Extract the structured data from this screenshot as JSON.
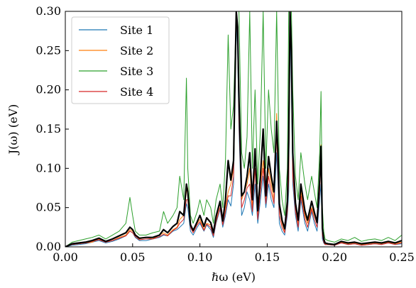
{
  "chart_data": {
    "type": "line",
    "xlabel": "ℏω (eV)",
    "ylabel": "J(ω) (eV)",
    "xlim": [
      0.0,
      0.25
    ],
    "ylim": [
      0.0,
      0.3
    ],
    "x_ticks": [
      0.0,
      0.05,
      0.1,
      0.15,
      0.2,
      0.25
    ],
    "x_tick_labels": [
      "0.00",
      "0.05",
      "0.10",
      "0.15",
      "0.20",
      "0.25"
    ],
    "y_ticks": [
      0.0,
      0.05,
      0.1,
      0.15,
      0.2,
      0.25,
      0.3
    ],
    "y_tick_labels": [
      "0.00",
      "0.05",
      "0.10",
      "0.15",
      "0.20",
      "0.25",
      "0.30"
    ],
    "legend_position": "upper-left",
    "grid": false,
    "x": [
      0.0,
      0.005,
      0.01,
      0.015,
      0.02,
      0.025,
      0.03,
      0.035,
      0.04,
      0.045,
      0.048,
      0.05,
      0.052,
      0.055,
      0.06,
      0.065,
      0.07,
      0.073,
      0.076,
      0.08,
      0.083,
      0.085,
      0.088,
      0.09,
      0.091,
      0.093,
      0.095,
      0.098,
      0.1,
      0.103,
      0.105,
      0.108,
      0.11,
      0.112,
      0.115,
      0.117,
      0.119,
      0.121,
      0.123,
      0.125,
      0.127,
      0.128,
      0.129,
      0.131,
      0.133,
      0.135,
      0.137,
      0.139,
      0.141,
      0.143,
      0.145,
      0.147,
      0.149,
      0.151,
      0.153,
      0.155,
      0.157,
      0.158,
      0.159,
      0.161,
      0.163,
      0.165,
      0.166,
      0.167,
      0.168,
      0.169,
      0.171,
      0.173,
      0.175,
      0.178,
      0.18,
      0.183,
      0.185,
      0.187,
      0.189,
      0.19,
      0.191,
      0.192,
      0.193,
      0.195,
      0.2,
      0.205,
      0.21,
      0.215,
      0.22,
      0.225,
      0.23,
      0.235,
      0.24,
      0.245,
      0.25
    ],
    "series": [
      {
        "name": "Site 1",
        "color": "#1f77b4",
        "values": [
          0.0,
          0.002,
          0.003,
          0.004,
          0.006,
          0.008,
          0.005,
          0.007,
          0.01,
          0.014,
          0.02,
          0.018,
          0.012,
          0.008,
          0.008,
          0.01,
          0.012,
          0.015,
          0.014,
          0.02,
          0.022,
          0.025,
          0.03,
          0.055,
          0.05,
          0.02,
          0.015,
          0.025,
          0.03,
          0.02,
          0.028,
          0.022,
          0.012,
          0.03,
          0.048,
          0.025,
          0.04,
          0.06,
          0.052,
          0.08,
          0.3,
          0.25,
          0.15,
          0.04,
          0.05,
          0.07,
          0.06,
          0.04,
          0.08,
          0.03,
          0.06,
          0.09,
          0.05,
          0.08,
          0.06,
          0.05,
          0.12,
          0.08,
          0.03,
          0.02,
          0.015,
          0.04,
          0.07,
          0.3,
          0.2,
          0.08,
          0.04,
          0.02,
          0.06,
          0.03,
          0.02,
          0.045,
          0.03,
          0.02,
          0.06,
          0.08,
          0.01,
          0.005,
          0.003,
          0.003,
          0.002,
          0.005,
          0.003,
          0.004,
          0.002,
          0.003,
          0.004,
          0.003,
          0.005,
          0.003,
          0.004
        ]
      },
      {
        "name": "Site 2",
        "color": "#ff7f0e",
        "values": [
          0.0,
          0.003,
          0.004,
          0.005,
          0.006,
          0.01,
          0.006,
          0.008,
          0.012,
          0.015,
          0.022,
          0.02,
          0.015,
          0.01,
          0.012,
          0.01,
          0.015,
          0.018,
          0.015,
          0.022,
          0.025,
          0.035,
          0.04,
          0.07,
          0.075,
          0.03,
          0.02,
          0.03,
          0.035,
          0.022,
          0.03,
          0.028,
          0.015,
          0.035,
          0.055,
          0.03,
          0.05,
          0.07,
          0.08,
          0.1,
          0.3,
          0.28,
          0.17,
          0.06,
          0.07,
          0.08,
          0.1,
          0.05,
          0.12,
          0.04,
          0.08,
          0.11,
          0.06,
          0.1,
          0.08,
          0.06,
          0.17,
          0.1,
          0.05,
          0.03,
          0.02,
          0.05,
          0.1,
          0.3,
          0.25,
          0.1,
          0.05,
          0.03,
          0.07,
          0.04,
          0.03,
          0.05,
          0.04,
          0.03,
          0.08,
          0.13,
          0.02,
          0.008,
          0.004,
          0.003,
          0.003,
          0.006,
          0.004,
          0.005,
          0.003,
          0.004,
          0.005,
          0.004,
          0.006,
          0.004,
          0.006
        ]
      },
      {
        "name": "Site 3",
        "color": "#2ca02c",
        "values": [
          0.0,
          0.006,
          0.008,
          0.01,
          0.012,
          0.015,
          0.01,
          0.015,
          0.02,
          0.03,
          0.063,
          0.04,
          0.02,
          0.015,
          0.015,
          0.018,
          0.02,
          0.045,
          0.03,
          0.04,
          0.05,
          0.09,
          0.06,
          0.215,
          0.1,
          0.04,
          0.03,
          0.045,
          0.06,
          0.04,
          0.06,
          0.05,
          0.03,
          0.06,
          0.08,
          0.05,
          0.11,
          0.27,
          0.15,
          0.18,
          0.3,
          0.3,
          0.3,
          0.12,
          0.1,
          0.14,
          0.3,
          0.1,
          0.2,
          0.08,
          0.15,
          0.3,
          0.1,
          0.2,
          0.15,
          0.12,
          0.3,
          0.2,
          0.1,
          0.06,
          0.04,
          0.1,
          0.3,
          0.3,
          0.3,
          0.2,
          0.09,
          0.06,
          0.12,
          0.08,
          0.06,
          0.09,
          0.07,
          0.05,
          0.12,
          0.198,
          0.05,
          0.02,
          0.01,
          0.008,
          0.006,
          0.01,
          0.008,
          0.012,
          0.007,
          0.009,
          0.01,
          0.008,
          0.012,
          0.008,
          0.015
        ]
      },
      {
        "name": "Site 4",
        "color": "#d62728",
        "values": [
          0.0,
          0.003,
          0.004,
          0.005,
          0.007,
          0.009,
          0.006,
          0.008,
          0.011,
          0.014,
          0.02,
          0.018,
          0.013,
          0.009,
          0.01,
          0.01,
          0.013,
          0.016,
          0.014,
          0.021,
          0.024,
          0.03,
          0.035,
          0.06,
          0.06,
          0.025,
          0.018,
          0.028,
          0.032,
          0.021,
          0.029,
          0.025,
          0.014,
          0.032,
          0.05,
          0.028,
          0.045,
          0.065,
          0.065,
          0.09,
          0.3,
          0.27,
          0.16,
          0.05,
          0.06,
          0.075,
          0.08,
          0.045,
          0.1,
          0.035,
          0.07,
          0.1,
          0.055,
          0.09,
          0.07,
          0.055,
          0.145,
          0.09,
          0.04,
          0.025,
          0.018,
          0.045,
          0.085,
          0.3,
          0.23,
          0.09,
          0.045,
          0.025,
          0.065,
          0.035,
          0.025,
          0.048,
          0.035,
          0.025,
          0.07,
          0.11,
          0.015,
          0.006,
          0.003,
          0.003,
          0.002,
          0.005,
          0.003,
          0.004,
          0.002,
          0.003,
          0.004,
          0.003,
          0.005,
          0.003,
          0.005
        ]
      },
      {
        "name": "",
        "color": "#000000",
        "width": 2.2,
        "values": [
          0.0,
          0.004,
          0.005,
          0.006,
          0.008,
          0.011,
          0.007,
          0.01,
          0.014,
          0.018,
          0.025,
          0.022,
          0.015,
          0.011,
          0.012,
          0.012,
          0.015,
          0.022,
          0.018,
          0.026,
          0.03,
          0.045,
          0.04,
          0.08,
          0.07,
          0.028,
          0.021,
          0.032,
          0.04,
          0.026,
          0.037,
          0.031,
          0.018,
          0.039,
          0.058,
          0.033,
          0.06,
          0.11,
          0.085,
          0.11,
          0.3,
          0.28,
          0.19,
          0.065,
          0.07,
          0.09,
          0.12,
          0.06,
          0.125,
          0.046,
          0.09,
          0.15,
          0.065,
          0.115,
          0.09,
          0.07,
          0.16,
          0.12,
          0.055,
          0.034,
          0.023,
          0.058,
          0.135,
          0.3,
          0.25,
          0.12,
          0.056,
          0.034,
          0.08,
          0.046,
          0.034,
          0.058,
          0.044,
          0.031,
          0.085,
          0.128,
          0.024,
          0.01,
          0.005,
          0.004,
          0.003,
          0.007,
          0.005,
          0.006,
          0.004,
          0.005,
          0.006,
          0.005,
          0.007,
          0.005,
          0.008
        ]
      }
    ]
  }
}
